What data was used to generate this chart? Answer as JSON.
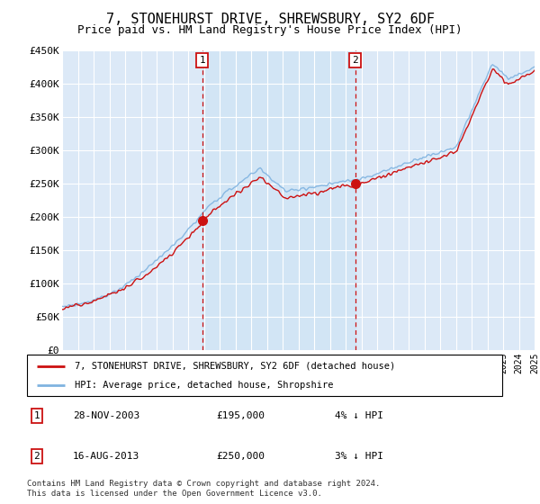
{
  "title": "7, STONEHURST DRIVE, SHREWSBURY, SY2 6DF",
  "subtitle": "Price paid vs. HM Land Registry's House Price Index (HPI)",
  "title_fontsize": 11,
  "subtitle_fontsize": 9,
  "ylabel_ticks": [
    "£0",
    "£50K",
    "£100K",
    "£150K",
    "£200K",
    "£250K",
    "£300K",
    "£350K",
    "£400K",
    "£450K"
  ],
  "ytick_values": [
    0,
    50000,
    100000,
    150000,
    200000,
    250000,
    300000,
    350000,
    400000,
    450000
  ],
  "ylim": [
    0,
    450000
  ],
  "xlim_start": 1995,
  "xlim_end": 2025,
  "background_color": "#dce9f7",
  "grid_color": "#ffffff",
  "hpi_color": "#7fb3e0",
  "price_color": "#cc1111",
  "shade_color": "#d0e4f5",
  "sale1_year": 2003.91,
  "sale1_price": 195000,
  "sale1_label": "28-NOV-2003",
  "sale1_amount": "£195,000",
  "sale1_hpi": "4% ↓ HPI",
  "sale2_year": 2013.62,
  "sale2_price": 250000,
  "sale2_label": "16-AUG-2013",
  "sale2_amount": "£250,000",
  "sale2_hpi": "3% ↓ HPI",
  "legend_line1": "7, STONEHURST DRIVE, SHREWSBURY, SY2 6DF (detached house)",
  "legend_line2": "HPI: Average price, detached house, Shropshire",
  "footer": "Contains HM Land Registry data © Crown copyright and database right 2024.\nThis data is licensed under the Open Government Licence v3.0."
}
